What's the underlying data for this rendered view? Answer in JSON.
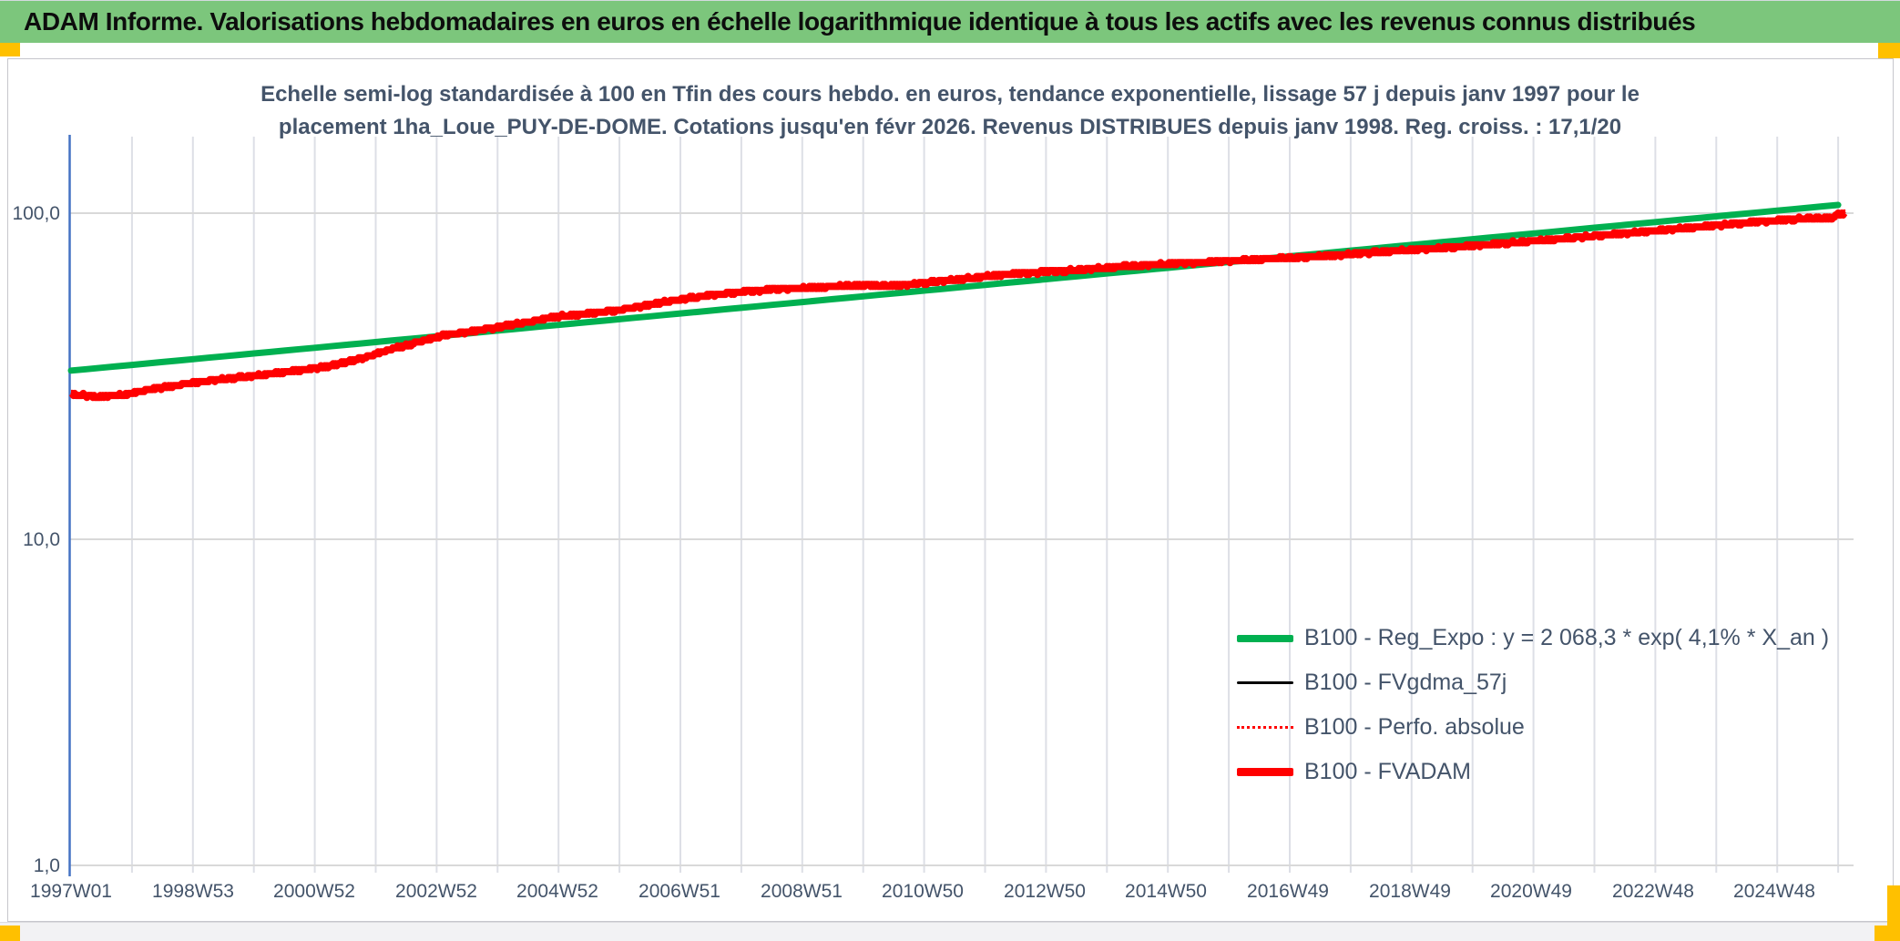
{
  "title_bar": {
    "text": "ADAM Informe. Valorisations hebdomadaires en euros en échelle logarithmique identique à tous les actifs avec les revenus connus distribués",
    "bg_color": "#7CC67C",
    "accent_color": "#FFC000"
  },
  "chart_data": {
    "type": "line",
    "subtitle_line1": "Echelle semi-log standardisée à 100 en Tfin des cours hebdo. en euros, tendance exponentielle, lissage 57 j depuis janv 1997 pour le",
    "subtitle_line2": "placement 1ha_Loue_PUY-DE-DOME. Cotations jusqu'en févr 2026. Revenus DISTRIBUES depuis janv 1998. Reg. croiss. : 17,1/20",
    "y_scale": "log",
    "ylim": [
      1,
      171
    ],
    "x_range_years": [
      1997.0,
      2026.12
    ],
    "grid": "on",
    "legend_position": "inside-bottom-right",
    "colors": {
      "gridline_v": "#DDDFE6",
      "gridline_h": "#D9D9D9",
      "axis": "#4472C4",
      "tick_text": "#44546A"
    },
    "x_tick_labels": [
      "1997W01",
      "1998W53",
      "2000W52",
      "2002W52",
      "2004W52",
      "2006W51",
      "2008W51",
      "2010W50",
      "2012W50",
      "2014W50",
      "2016W49",
      "2018W49",
      "2020W49",
      "2022W48",
      "2024W48"
    ],
    "y_ticks": [
      {
        "label": "100,0",
        "value": 100
      },
      {
        "label": "10,0",
        "value": 10
      },
      {
        "label": "1,0",
        "value": 1
      }
    ],
    "series": [
      {
        "name": "B100 - Reg_Expo : y = 2 068,3 * exp( 4,1% *  X_an )",
        "color": "#00B050",
        "style": "solid",
        "width": 7,
        "model": "exponential",
        "value_start": 32.9,
        "value_end": 106.5
      },
      {
        "name": "B100 - FVgdma_57j",
        "color": "#000000",
        "style": "solid",
        "width": 2.5,
        "coincides_with": "B100 - FVADAM"
      },
      {
        "name": "B100 - Perfo. absolue",
        "color": "#FF0000",
        "style": "dotted",
        "width": 2,
        "coincides_with": "B100 - FVADAM"
      },
      {
        "name": "B100 - FVADAM",
        "color": "#FF0000",
        "style": "solid",
        "width": 8,
        "points": [
          [
            1997.0,
            27.8
          ],
          [
            1997.4,
            27.4
          ],
          [
            1997.8,
            27.6
          ],
          [
            1998.1,
            28.3
          ],
          [
            1998.5,
            29.2
          ],
          [
            1999.0,
            30.2
          ],
          [
            1999.5,
            31.0
          ],
          [
            2000.0,
            31.7
          ],
          [
            2000.4,
            32.4
          ],
          [
            2000.8,
            33.0
          ],
          [
            2001.2,
            33.9
          ],
          [
            2001.6,
            35.2
          ],
          [
            2001.9,
            36.5
          ],
          [
            2002.2,
            38.1
          ],
          [
            2002.5,
            39.3
          ],
          [
            2002.8,
            40.7
          ],
          [
            2003.1,
            42.2
          ],
          [
            2003.5,
            43.2
          ],
          [
            2004.0,
            44.7
          ],
          [
            2004.5,
            46.4
          ],
          [
            2005.0,
            48.2
          ],
          [
            2005.5,
            49.2
          ],
          [
            2006.0,
            50.5
          ],
          [
            2006.5,
            52.4
          ],
          [
            2007.0,
            54.4
          ],
          [
            2007.5,
            56.0
          ],
          [
            2008.0,
            57.4
          ],
          [
            2008.5,
            58.4
          ],
          [
            2009.0,
            58.9
          ],
          [
            2009.5,
            59.5
          ],
          [
            2010.0,
            60.1
          ],
          [
            2010.4,
            59.8
          ],
          [
            2010.8,
            60.5
          ],
          [
            2011.2,
            61.7
          ],
          [
            2011.6,
            62.8
          ],
          [
            2012.0,
            63.9
          ],
          [
            2012.5,
            65.2
          ],
          [
            2013.0,
            66.1
          ],
          [
            2013.5,
            66.9
          ],
          [
            2014.0,
            67.9
          ],
          [
            2014.5,
            69.1
          ],
          [
            2015.0,
            69.9
          ],
          [
            2015.5,
            70.6
          ],
          [
            2016.0,
            71.3
          ],
          [
            2016.5,
            72.1
          ],
          [
            2017.0,
            72.9
          ],
          [
            2017.5,
            73.8
          ],
          [
            2018.0,
            74.9
          ],
          [
            2018.5,
            76.0
          ],
          [
            2019.0,
            77.1
          ],
          [
            2019.5,
            78.2
          ],
          [
            2020.0,
            79.4
          ],
          [
            2020.5,
            80.7
          ],
          [
            2021.0,
            82.1
          ],
          [
            2021.5,
            83.6
          ],
          [
            2022.0,
            85.1
          ],
          [
            2022.5,
            86.7
          ],
          [
            2023.0,
            88.3
          ],
          [
            2023.5,
            90.0
          ],
          [
            2024.0,
            91.7
          ],
          [
            2024.5,
            93.4
          ],
          [
            2025.0,
            95.1
          ],
          [
            2025.5,
            96.3
          ],
          [
            2025.9,
            96.8
          ],
          [
            2026.0,
            99.4
          ],
          [
            2026.12,
            99.8
          ]
        ]
      }
    ]
  }
}
